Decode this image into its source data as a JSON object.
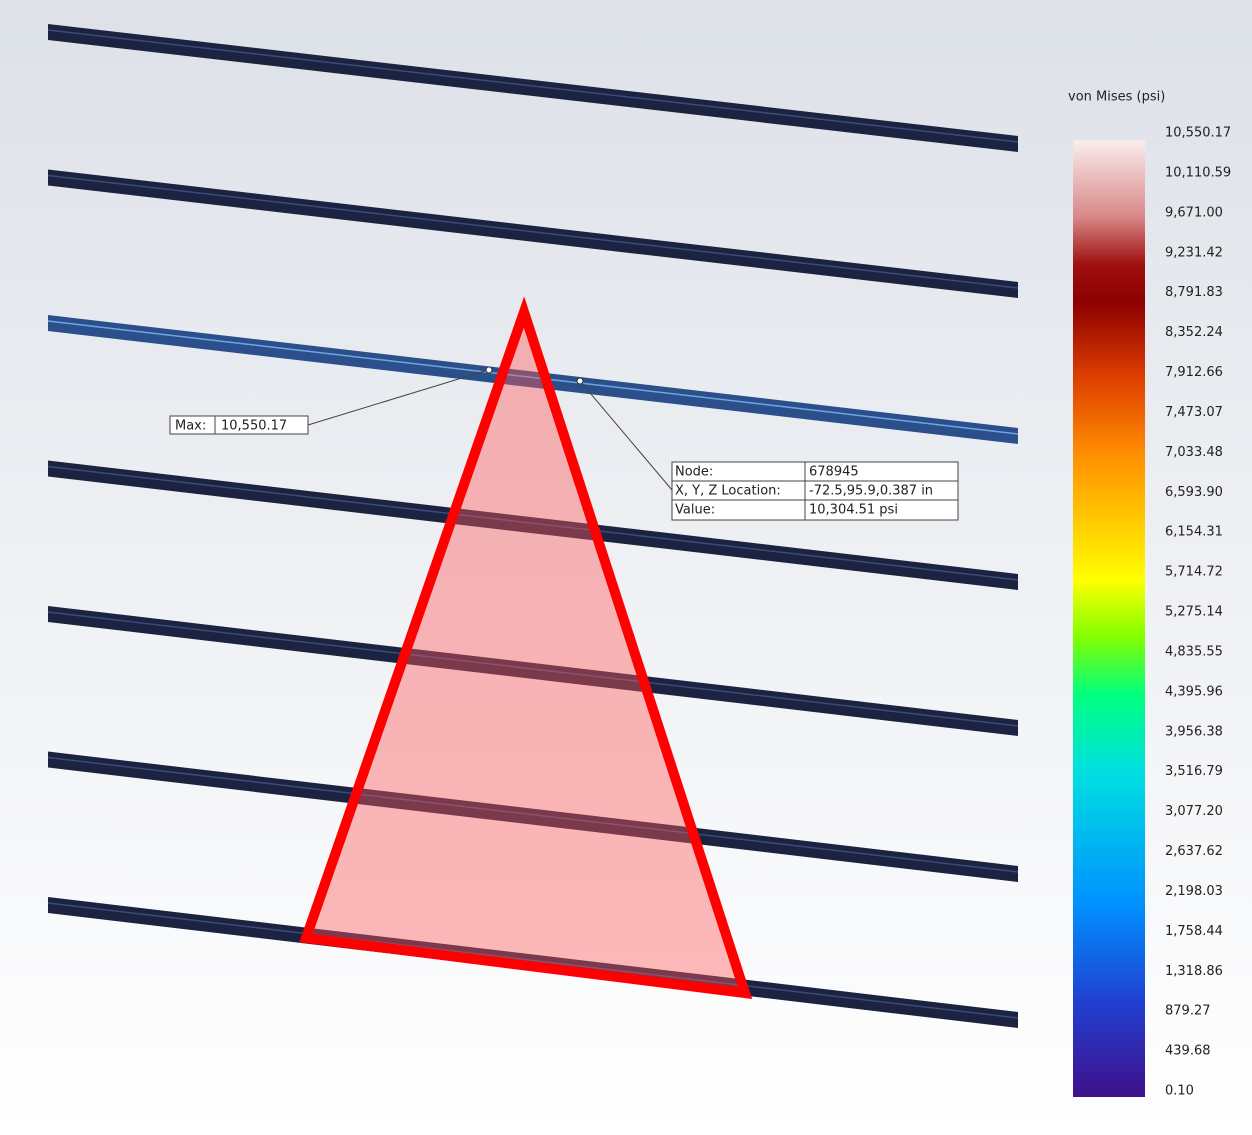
{
  "legend": {
    "title": "von Mises (psi)",
    "ticks": [
      "10,550.17",
      "10,110.59",
      "9,671.00",
      "9,231.42",
      "8,791.83",
      "8,352.24",
      "7,912.66",
      "7,473.07",
      "7,033.48",
      "6,593.90",
      "6,154.31",
      "5,714.72",
      "5,275.14",
      "4,835.55",
      "4,395.96",
      "3,956.38",
      "3,516.79",
      "3,077.20",
      "2,637.62",
      "2,198.03",
      "1,758.44",
      "1,318.86",
      "879.27",
      "439.68",
      "0.10"
    ]
  },
  "max_label": {
    "label": "Max:",
    "value": "10,550.17"
  },
  "probe": {
    "rows": [
      [
        "Node:",
        "678945"
      ],
      [
        "X, Y, Z Location:",
        "-72.5,95.9,0.387 in"
      ],
      [
        "Value:",
        "10,304.51  psi"
      ]
    ]
  }
}
